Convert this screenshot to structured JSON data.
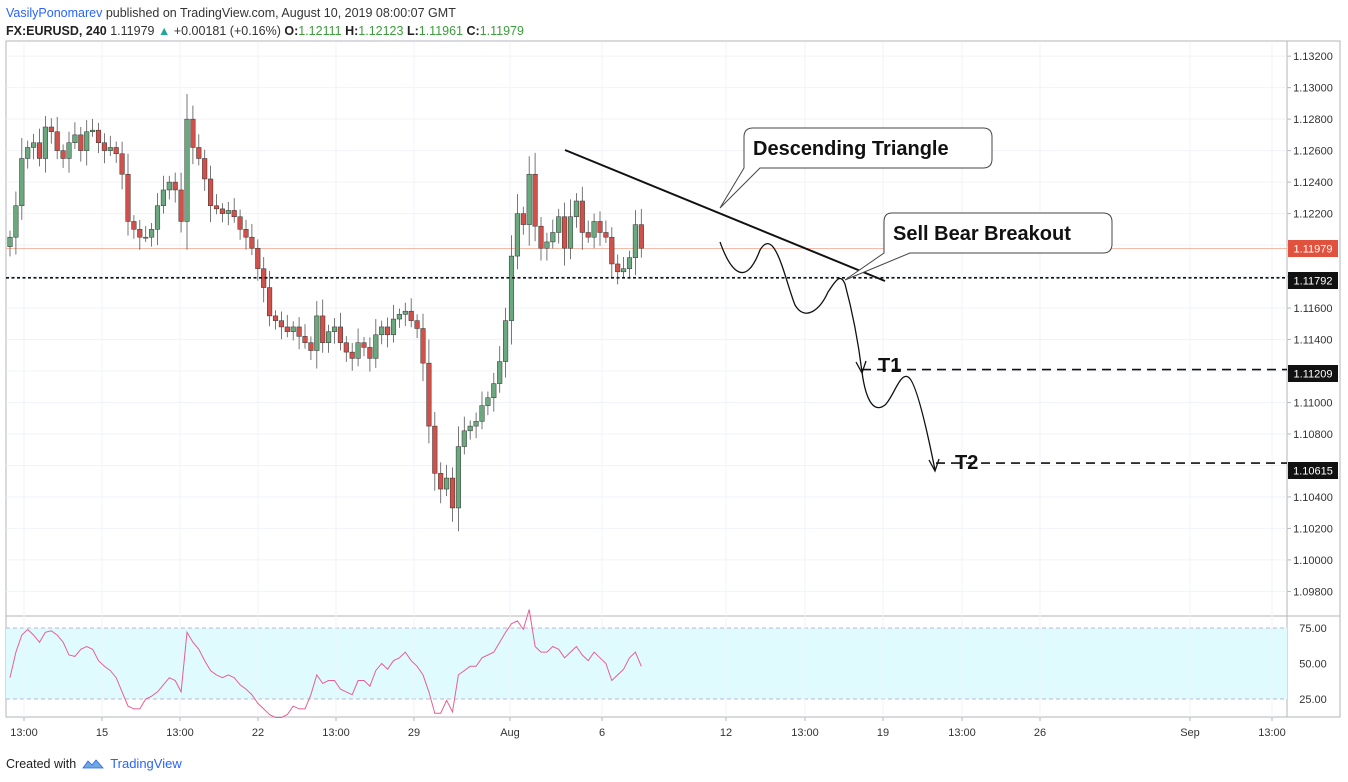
{
  "header": {
    "author": "VasilyPonomarev",
    "published": "published on TradingView.com, August 10, 2019 08:00:07 GMT",
    "symbol": "FX:EURUSD, 240",
    "last": "1.11979",
    "arrow": "▲",
    "change": "+0.00181 (+0.16%)",
    "o_label": "O:",
    "o_value": "1.12111",
    "h_label": "H:",
    "h_value": "1.12123",
    "l_label": "L:",
    "l_value": "1.11961",
    "c_label": "C:",
    "c_value": "1.11979"
  },
  "footer": {
    "created_with": "Created with",
    "brand": "TradingView"
  },
  "colors": {
    "up": "#6aa87e",
    "down": "#d0514a",
    "rsi": "#e55f96",
    "rsi_band": "#e0fbfd",
    "accent": "#e0523e"
  },
  "chart_data": [
    {
      "type": "candlestick",
      "title": "FX:EURUSD, 240",
      "ylim": [
        1.0965,
        1.1329
      ],
      "price_ticks": [
        "1.13200",
        "1.13000",
        "1.12800",
        "1.12600",
        "1.12400",
        "1.12200",
        "1.12000",
        "1.11800",
        "1.11600",
        "1.11400",
        "1.11200",
        "1.11000",
        "1.10800",
        "1.10600",
        "1.10400",
        "1.10200",
        "1.10000",
        "1.09800"
      ],
      "x_ticks": [
        "13:00",
        "15",
        "13:00",
        "22",
        "13:00",
        "29",
        "Aug",
        "6",
        "12",
        "13:00",
        "19",
        "13:00",
        "26",
        "Sep",
        "13:00"
      ],
      "last_price_label": "1.11979",
      "levels": [
        {
          "label": "1.11792",
          "value": 1.11792,
          "style": "dotted"
        },
        {
          "label": "1.11209",
          "value": 1.11209,
          "style": "dashed",
          "name": "T1"
        },
        {
          "label": "1.10615",
          "value": 1.10615,
          "style": "dashed",
          "name": "T2"
        }
      ],
      "annotations": [
        "Descending Triangle",
        "Sell Bear Breakout",
        "T1",
        "T2"
      ],
      "closes_approx": [
        1.1205,
        1.1225,
        1.1255,
        1.1262,
        1.1265,
        1.1255,
        1.1275,
        1.1272,
        1.126,
        1.1255,
        1.1265,
        1.127,
        1.126,
        1.1272,
        1.1273,
        1.1265,
        1.126,
        1.1262,
        1.1258,
        1.1245,
        1.1215,
        1.121,
        1.1205,
        1.1205,
        1.121,
        1.1225,
        1.1235,
        1.124,
        1.1235,
        1.1215,
        1.128,
        1.1262,
        1.1255,
        1.1242,
        1.1225,
        1.1223,
        1.122,
        1.1222,
        1.1218,
        1.121,
        1.1205,
        1.1198,
        1.1185,
        1.1173,
        1.1155,
        1.1152,
        1.1148,
        1.1145,
        1.1148,
        1.1142,
        1.1138,
        1.1133,
        1.1155,
        1.1138,
        1.1145,
        1.1148,
        1.1138,
        1.1132,
        1.1128,
        1.1138,
        1.1135,
        1.1128,
        1.1143,
        1.1148,
        1.1143,
        1.1153,
        1.1156,
        1.1158,
        1.1152,
        1.1147,
        1.1125,
        1.1085,
        1.1055,
        1.1045,
        1.1052,
        1.1033,
        1.1072,
        1.1082,
        1.1085,
        1.1088,
        1.1098,
        1.1103,
        1.1112,
        1.1126,
        1.1152,
        1.1193,
        1.122,
        1.1213,
        1.1245,
        1.1212,
        1.1198,
        1.1202,
        1.1208,
        1.1218,
        1.1198,
        1.1218,
        1.1228,
        1.1208,
        1.1205,
        1.1215,
        1.1208,
        1.1205,
        1.1188,
        1.1183,
        1.1185,
        1.1192,
        1.1213,
        1.1198
      ],
      "rsi": {
        "levels": [
          "75.00",
          "50.00",
          "25.00"
        ],
        "values_approx": [
          40,
          58,
          70,
          74,
          70,
          65,
          72,
          73,
          70,
          65,
          56,
          55,
          60,
          62,
          60,
          52,
          48,
          45,
          40,
          30,
          20,
          18,
          18,
          25,
          27,
          30,
          35,
          40,
          38,
          30,
          72,
          65,
          60,
          52,
          45,
          42,
          40,
          42,
          40,
          35,
          32,
          28,
          22,
          18,
          14,
          12,
          12,
          14,
          20,
          18,
          18,
          28,
          42,
          36,
          38,
          38,
          32,
          30,
          28,
          38,
          38,
          34,
          45,
          50,
          46,
          52,
          54,
          58,
          52,
          48,
          42,
          30,
          15,
          15,
          24,
          16,
          42,
          45,
          48,
          48,
          54,
          56,
          58,
          65,
          72,
          78,
          80,
          74,
          88,
          62,
          58,
          58,
          62,
          60,
          54,
          58,
          62,
          56,
          52,
          58,
          54,
          50,
          38,
          42,
          46,
          54,
          58,
          48
        ]
      },
      "projection": "price path forecast breaking below 1.11792 to T1 1.11209 then T2 1.10615"
    }
  ]
}
